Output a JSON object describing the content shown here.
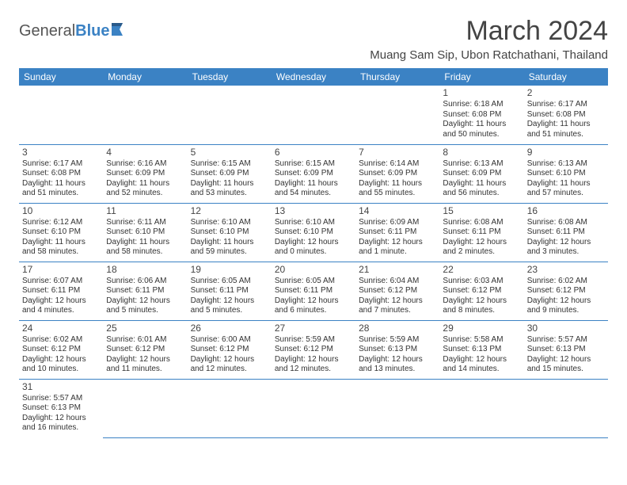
{
  "logo": {
    "text_a": "General",
    "text_b": "Blue"
  },
  "title": "March 2024",
  "location": "Muang Sam Sip, Ubon Ratchathani, Thailand",
  "colors": {
    "header_bg": "#3b82c4",
    "header_text": "#ffffff",
    "cell_border": "#3b82c4",
    "body_text": "#333333",
    "title_text": "#444444"
  },
  "day_headers": [
    "Sunday",
    "Monday",
    "Tuesday",
    "Wednesday",
    "Thursday",
    "Friday",
    "Saturday"
  ],
  "weeks": [
    [
      null,
      null,
      null,
      null,
      null,
      {
        "n": "1",
        "sr": "6:18 AM",
        "ss": "6:08 PM",
        "dl": "11 hours and 50 minutes."
      },
      {
        "n": "2",
        "sr": "6:17 AM",
        "ss": "6:08 PM",
        "dl": "11 hours and 51 minutes."
      }
    ],
    [
      {
        "n": "3",
        "sr": "6:17 AM",
        "ss": "6:08 PM",
        "dl": "11 hours and 51 minutes."
      },
      {
        "n": "4",
        "sr": "6:16 AM",
        "ss": "6:09 PM",
        "dl": "11 hours and 52 minutes."
      },
      {
        "n": "5",
        "sr": "6:15 AM",
        "ss": "6:09 PM",
        "dl": "11 hours and 53 minutes."
      },
      {
        "n": "6",
        "sr": "6:15 AM",
        "ss": "6:09 PM",
        "dl": "11 hours and 54 minutes."
      },
      {
        "n": "7",
        "sr": "6:14 AM",
        "ss": "6:09 PM",
        "dl": "11 hours and 55 minutes."
      },
      {
        "n": "8",
        "sr": "6:13 AM",
        "ss": "6:09 PM",
        "dl": "11 hours and 56 minutes."
      },
      {
        "n": "9",
        "sr": "6:13 AM",
        "ss": "6:10 PM",
        "dl": "11 hours and 57 minutes."
      }
    ],
    [
      {
        "n": "10",
        "sr": "6:12 AM",
        "ss": "6:10 PM",
        "dl": "11 hours and 58 minutes."
      },
      {
        "n": "11",
        "sr": "6:11 AM",
        "ss": "6:10 PM",
        "dl": "11 hours and 58 minutes."
      },
      {
        "n": "12",
        "sr": "6:10 AM",
        "ss": "6:10 PM",
        "dl": "11 hours and 59 minutes."
      },
      {
        "n": "13",
        "sr": "6:10 AM",
        "ss": "6:10 PM",
        "dl": "12 hours and 0 minutes."
      },
      {
        "n": "14",
        "sr": "6:09 AM",
        "ss": "6:11 PM",
        "dl": "12 hours and 1 minute."
      },
      {
        "n": "15",
        "sr": "6:08 AM",
        "ss": "6:11 PM",
        "dl": "12 hours and 2 minutes."
      },
      {
        "n": "16",
        "sr": "6:08 AM",
        "ss": "6:11 PM",
        "dl": "12 hours and 3 minutes."
      }
    ],
    [
      {
        "n": "17",
        "sr": "6:07 AM",
        "ss": "6:11 PM",
        "dl": "12 hours and 4 minutes."
      },
      {
        "n": "18",
        "sr": "6:06 AM",
        "ss": "6:11 PM",
        "dl": "12 hours and 5 minutes."
      },
      {
        "n": "19",
        "sr": "6:05 AM",
        "ss": "6:11 PM",
        "dl": "12 hours and 5 minutes."
      },
      {
        "n": "20",
        "sr": "6:05 AM",
        "ss": "6:11 PM",
        "dl": "12 hours and 6 minutes."
      },
      {
        "n": "21",
        "sr": "6:04 AM",
        "ss": "6:12 PM",
        "dl": "12 hours and 7 minutes."
      },
      {
        "n": "22",
        "sr": "6:03 AM",
        "ss": "6:12 PM",
        "dl": "12 hours and 8 minutes."
      },
      {
        "n": "23",
        "sr": "6:02 AM",
        "ss": "6:12 PM",
        "dl": "12 hours and 9 minutes."
      }
    ],
    [
      {
        "n": "24",
        "sr": "6:02 AM",
        "ss": "6:12 PM",
        "dl": "12 hours and 10 minutes."
      },
      {
        "n": "25",
        "sr": "6:01 AM",
        "ss": "6:12 PM",
        "dl": "12 hours and 11 minutes."
      },
      {
        "n": "26",
        "sr": "6:00 AM",
        "ss": "6:12 PM",
        "dl": "12 hours and 12 minutes."
      },
      {
        "n": "27",
        "sr": "5:59 AM",
        "ss": "6:12 PM",
        "dl": "12 hours and 12 minutes."
      },
      {
        "n": "28",
        "sr": "5:59 AM",
        "ss": "6:13 PM",
        "dl": "12 hours and 13 minutes."
      },
      {
        "n": "29",
        "sr": "5:58 AM",
        "ss": "6:13 PM",
        "dl": "12 hours and 14 minutes."
      },
      {
        "n": "30",
        "sr": "5:57 AM",
        "ss": "6:13 PM",
        "dl": "12 hours and 15 minutes."
      }
    ],
    [
      {
        "n": "31",
        "sr": "5:57 AM",
        "ss": "6:13 PM",
        "dl": "12 hours and 16 minutes."
      },
      null,
      null,
      null,
      null,
      null,
      null
    ]
  ]
}
